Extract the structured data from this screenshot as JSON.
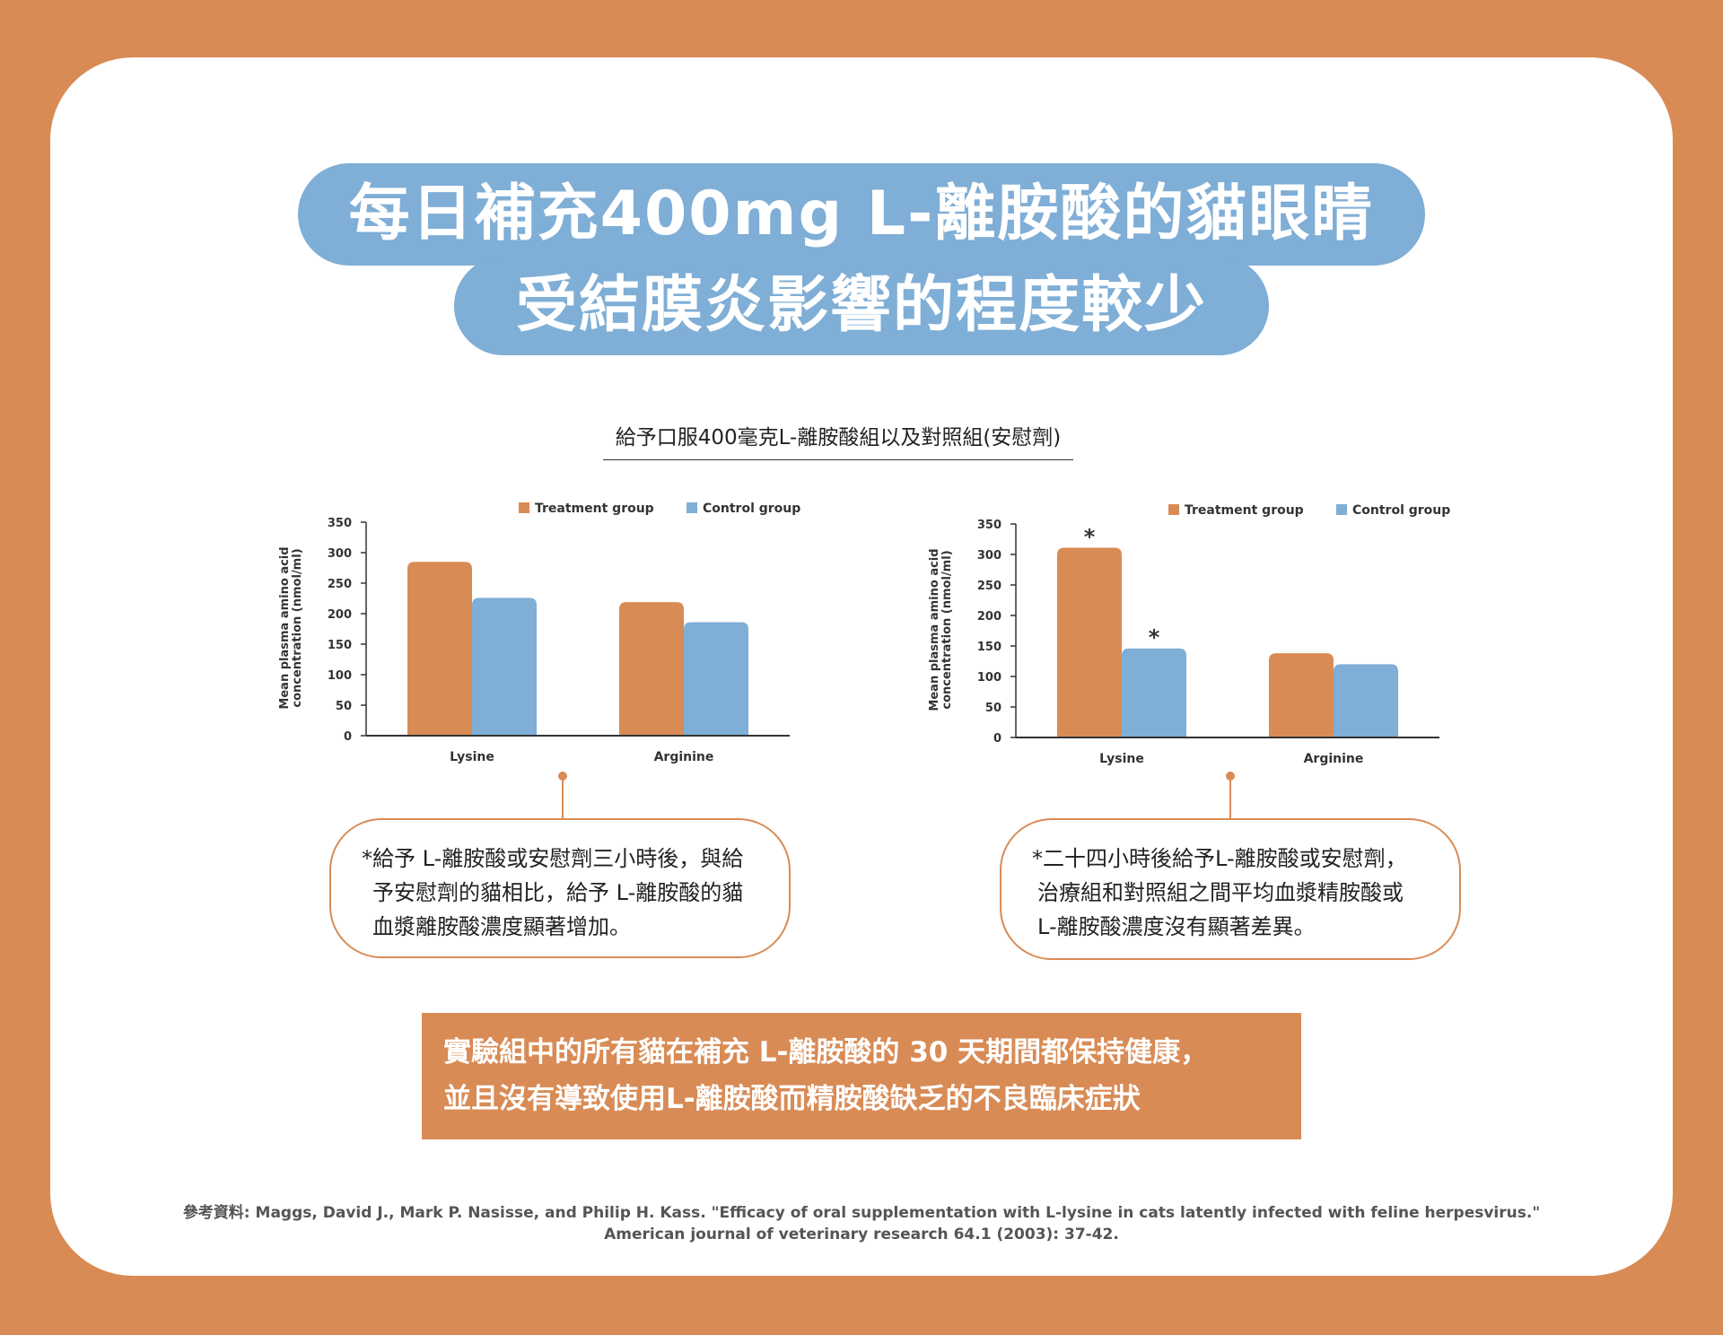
{
  "header": {
    "title_line1": "每日補充400mg L-離胺酸的貓眼睛",
    "title_line2": "受結膜炎影響的程度較少"
  },
  "subtitle": "給予口服400毫克L-離胺酸組以及對照組(安慰劑)",
  "colors": {
    "treatment": "#D98B55",
    "control": "#7FAED6",
    "background": "#D98B55"
  },
  "chart_data": [
    {
      "type": "bar",
      "categories": [
        "Lysine",
        "Arginine"
      ],
      "series": [
        {
          "name": "Treatment group",
          "values": [
            285,
            219
          ],
          "color": "#D98B55"
        },
        {
          "name": "Control group",
          "values": [
            226,
            186
          ],
          "color": "#7FAED6"
        }
      ],
      "ylabel_line1": "Mean plasma amino acid",
      "ylabel_line2": "concentration  (nmol/ml)",
      "ylim": [
        0,
        350
      ],
      "yticks": [
        0,
        50,
        100,
        150,
        200,
        250,
        300,
        350
      ],
      "legend": "top-right",
      "significance": []
    },
    {
      "type": "bar",
      "categories": [
        "Lysine",
        "Arginine"
      ],
      "series": [
        {
          "name": "Treatment group",
          "values": [
            311,
            138
          ],
          "color": "#D98B55"
        },
        {
          "name": "Control group",
          "values": [
            146,
            120
          ],
          "color": "#7FAED6"
        }
      ],
      "ylabel_line1": "Mean plasma amino acid",
      "ylabel_line2": "concentration  (nmol/ml)",
      "ylim": [
        0,
        350
      ],
      "yticks": [
        0,
        50,
        100,
        150,
        200,
        250,
        300,
        350
      ],
      "legend": "top-right",
      "significance": [
        {
          "category": 0,
          "series": 0,
          "mark": "*"
        },
        {
          "category": 0,
          "series": 1,
          "mark": "*"
        }
      ]
    }
  ],
  "notes": {
    "left": [
      "*給予 L-離胺酸或安慰劑三小時後，與給",
      "予安慰劑的貓相比，給予 L-離胺酸的貓",
      "血漿離胺酸濃度顯著增加。"
    ],
    "right": [
      "*二十四小時後給予L-離胺酸或安慰劑，",
      "治療組和對照組之間平均血漿精胺酸或",
      "L-離胺酸濃度沒有顯著差異。"
    ]
  },
  "banner": {
    "line1": "實驗組中的所有貓在補充 L-離胺酸的 30 天期間都保持健康，",
    "line2": "並且沒有導致使用L-離胺酸而精胺酸缺乏的不良臨床症狀"
  },
  "reference": {
    "line1": "參考資料: Maggs, David J., Mark P. Nasisse, and Philip H. Kass. \"Efficacy of oral supplementation with L-lysine in cats latently infected with feline herpesvirus.\"",
    "line2": "American journal of veterinary research 64.1 (2003): 37-42."
  }
}
